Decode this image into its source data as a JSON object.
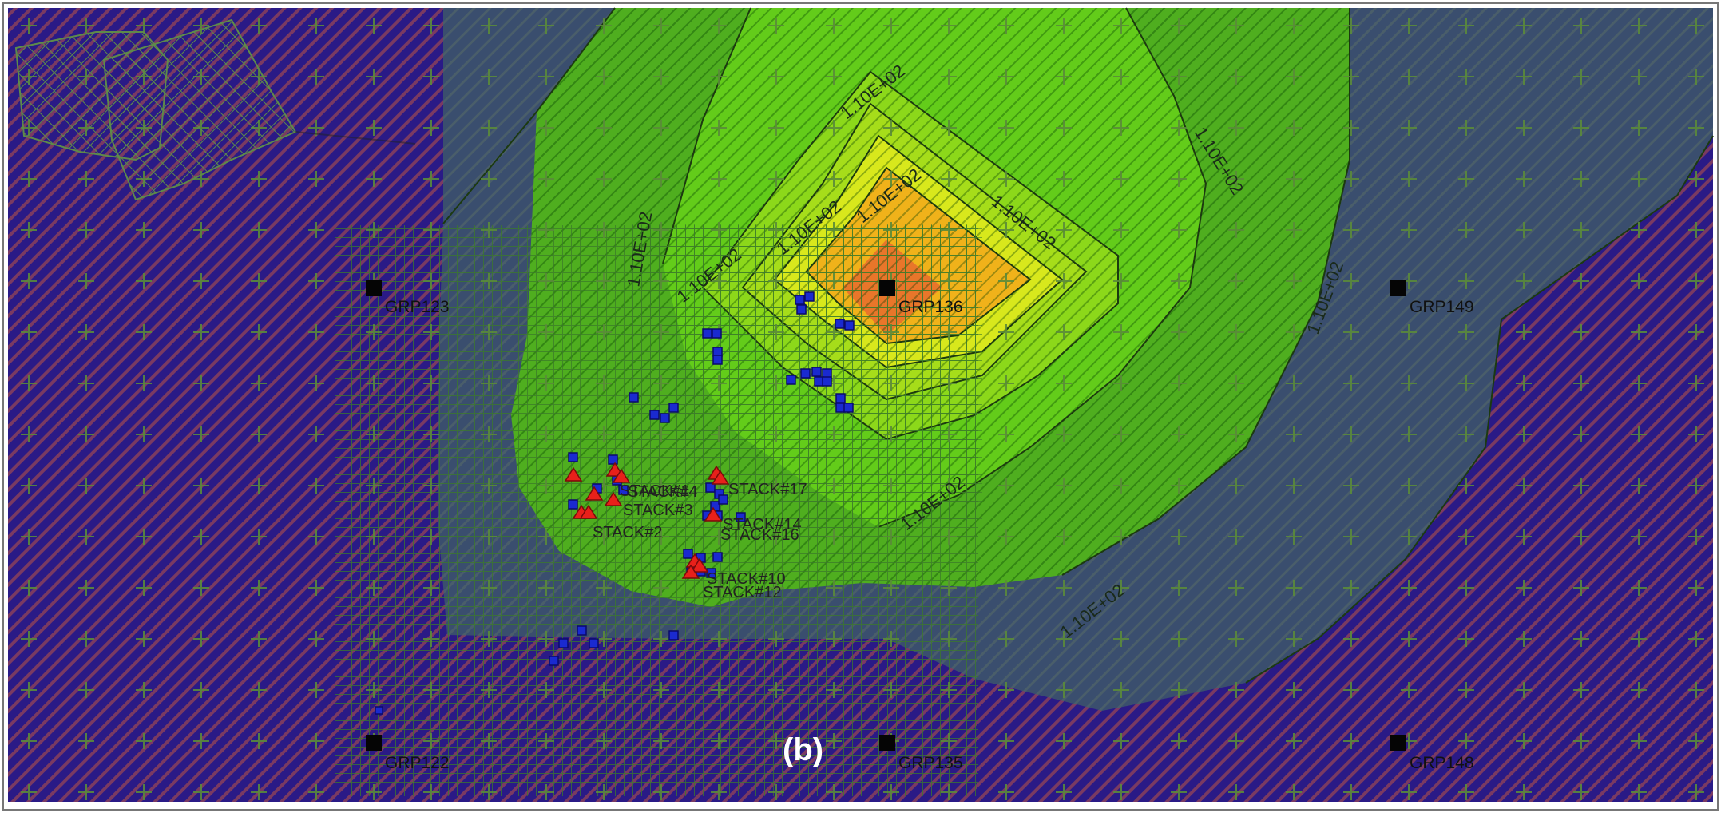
{
  "panel_label": "(b)",
  "contour_value_label": "1.10E+02",
  "contour_fill_colors": [
    "#3a4e6e",
    "#4fae1f",
    "#6bd41a",
    "#9ae21a",
    "#d8e81c",
    "#f0a21a",
    "#e8762a"
  ],
  "background_fill_color": "#2a1a86",
  "receptors": [
    {
      "id": "GRP123"
    },
    {
      "id": "GRP136"
    },
    {
      "id": "GRP149"
    },
    {
      "id": "GRP122"
    },
    {
      "id": "GRP135"
    },
    {
      "id": "GRP148"
    }
  ],
  "stack_labels": [
    "STACK#1",
    "STACK#2",
    "STACK#3",
    "STACK#4",
    "STACK#10",
    "STACK#12",
    "STACK#14",
    "STACK#16",
    "STACK#17"
  ],
  "icons": {
    "receptor": "black-square-marker",
    "source": "blue-square-marker",
    "stack": "red-triangle-marker"
  }
}
